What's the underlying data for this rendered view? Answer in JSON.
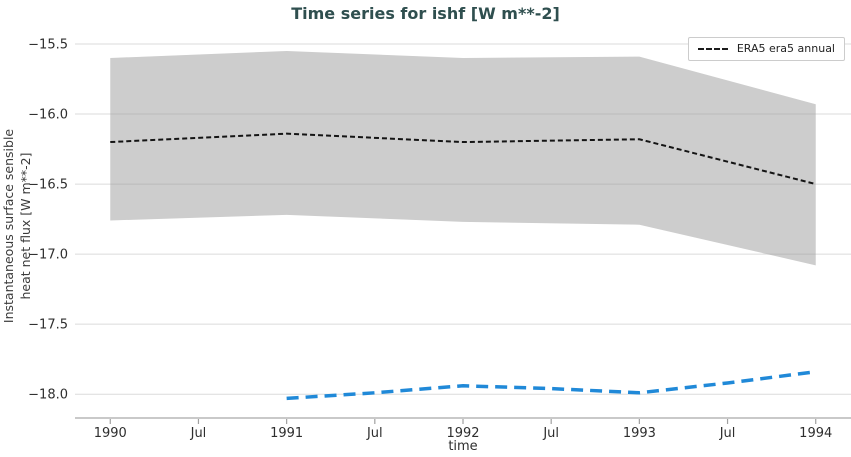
{
  "chart_data": {
    "type": "line",
    "title": "Time series for ishf [W m**-2]",
    "xlabel": "time",
    "ylabel": "Instantaneous surface sensible\nheat net flux [W m**-2]",
    "xlim": [
      1989.8,
      1994.2
    ],
    "ylim": [
      -18.17,
      -15.4
    ],
    "grid": true,
    "x_ticks": [
      {
        "pos": 1990.0,
        "label": "1990"
      },
      {
        "pos": 1990.5,
        "label": "Jul"
      },
      {
        "pos": 1991.0,
        "label": "1991"
      },
      {
        "pos": 1991.5,
        "label": "Jul"
      },
      {
        "pos": 1992.0,
        "label": "1992"
      },
      {
        "pos": 1992.5,
        "label": "Jul"
      },
      {
        "pos": 1993.0,
        "label": "1993"
      },
      {
        "pos": 1993.5,
        "label": "Jul"
      },
      {
        "pos": 1994.0,
        "label": "1994"
      }
    ],
    "y_ticks": [
      {
        "pos": -15.5,
        "label": "−15.5"
      },
      {
        "pos": -16.0,
        "label": "−16.0"
      },
      {
        "pos": -16.5,
        "label": "−16.5"
      },
      {
        "pos": -17.0,
        "label": "−17.0"
      },
      {
        "pos": -17.5,
        "label": "−17.5"
      },
      {
        "pos": -18.0,
        "label": "−18.0"
      }
    ],
    "band": {
      "x": [
        1990,
        1991,
        1992,
        1993,
        1994
      ],
      "upper": [
        -15.6,
        -15.55,
        -15.6,
        -15.59,
        -15.93
      ],
      "lower": [
        -16.76,
        -16.72,
        -16.77,
        -16.79,
        -17.08
      ],
      "color": "#cdcdcd"
    },
    "series": [
      {
        "legend_label": "ERA5 era5 annual",
        "color": "#141414",
        "dash": [
          5,
          3
        ],
        "width": 2,
        "x": [
          1990,
          1991,
          1992,
          1993,
          1994
        ],
        "y": [
          -16.2,
          -16.14,
          -16.2,
          -16.18,
          -16.5
        ]
      },
      {
        "legend_label": null,
        "color": "#2089d8",
        "dash": [
          12,
          7
        ],
        "width": 3.5,
        "x": [
          1991,
          1991.5,
          1992,
          1992.5,
          1993,
          1993.5,
          1994
        ],
        "y": [
          -18.03,
          -17.99,
          -17.94,
          -17.96,
          -17.99,
          -17.92,
          -17.84
        ]
      }
    ],
    "legend": {
      "position": "top-right",
      "entries": [
        {
          "label": "ERA5 era5 annual",
          "line_color": "#141414",
          "line_style": "dashed"
        }
      ]
    },
    "colors": {
      "grid": "#999999",
      "spine": "#c9c9c9",
      "tick": "#a0a0a0",
      "tick_text": "#2e2e2e",
      "title": "#2f4f4f"
    }
  }
}
